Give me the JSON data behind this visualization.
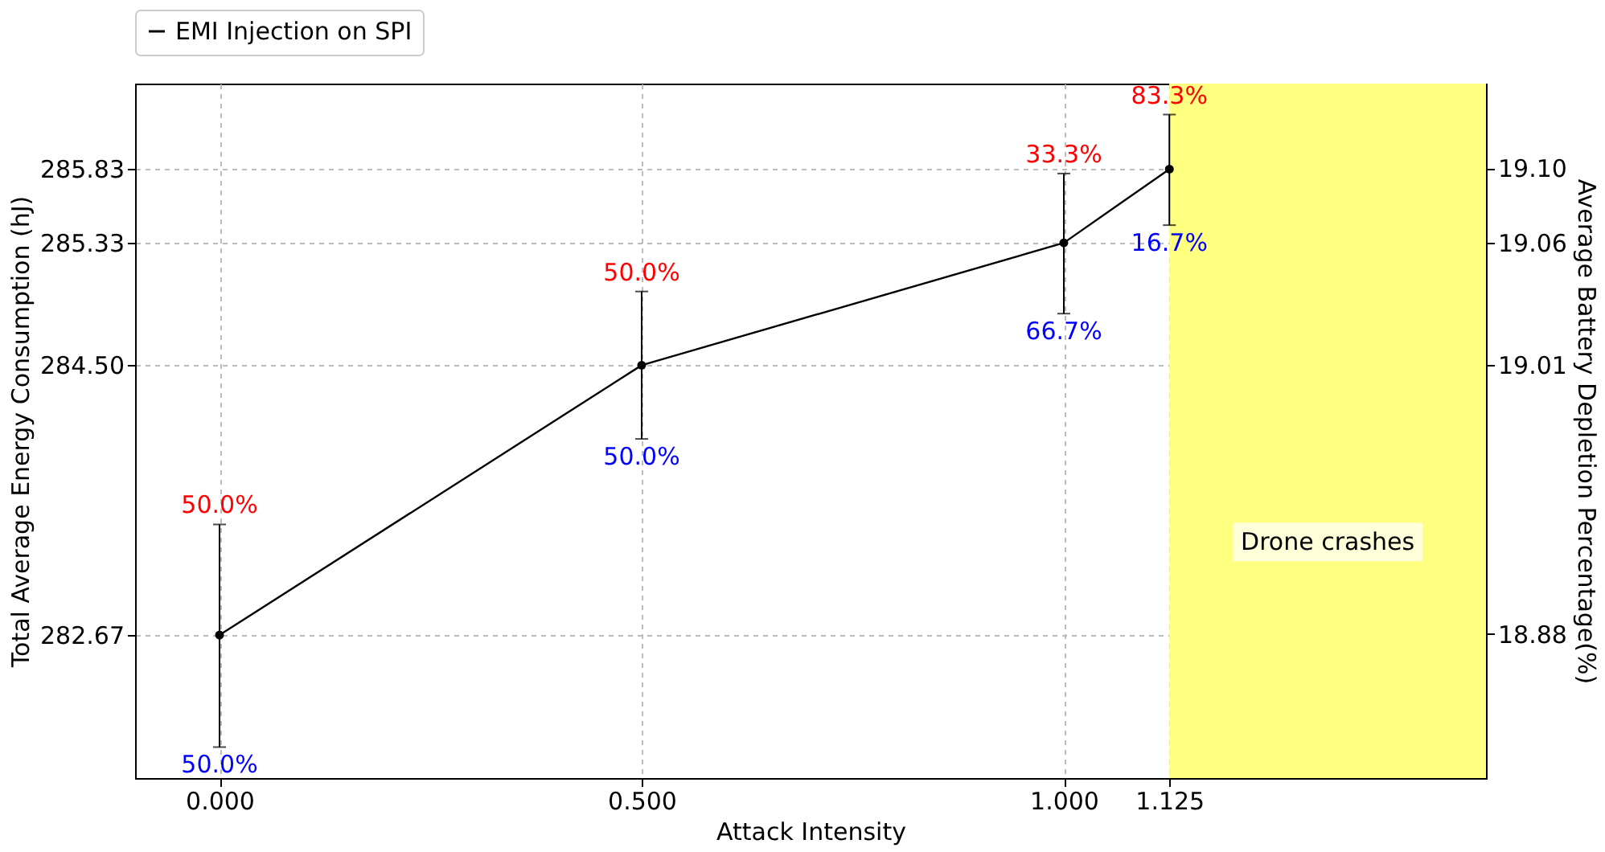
{
  "chart_data": {
    "type": "line",
    "xlabel": "Attack Intensity",
    "ylabel": "Total Average Energy Consumption (hJ)",
    "y2label": "Average Battery Depletion Percentage(%)",
    "x": [
      0,
      0.5,
      1.0,
      1.125
    ],
    "series": [
      {
        "name": "EMI Injection on SPI",
        "color": "#000000",
        "values": [
          282.67,
          284.5,
          285.33,
          285.83
        ],
        "errors": [
          [
            281.91,
            283.42
          ],
          [
            284.0,
            285.0
          ],
          [
            284.85,
            285.8
          ],
          [
            285.45,
            286.2
          ]
        ]
      }
    ],
    "xlim": [
      -0.1,
      1.5
    ],
    "xticks": [
      {
        "value": 0,
        "label": "0.000"
      },
      {
        "value": 0.5,
        "label": "0.500"
      },
      {
        "value": 1.0,
        "label": "1.000"
      },
      {
        "value": 1.125,
        "label": "1.125"
      }
    ],
    "ylim": [
      281.7,
      286.41
    ],
    "yticks": [
      {
        "value": 282.67,
        "label": "282.67"
      },
      {
        "value": 284.5,
        "label": "284.50"
      },
      {
        "value": 285.33,
        "label": "285.33"
      },
      {
        "value": 285.83,
        "label": "285.83"
      }
    ],
    "y2lim": [
      18.812,
      19.14
    ],
    "y2ticks": [
      {
        "value": 18.88,
        "label": "18.88"
      },
      {
        "value": 19.007,
        "label": "19.01"
      },
      {
        "value": 19.065,
        "label": "19.06"
      },
      {
        "value": 19.1,
        "label": "19.10"
      }
    ],
    "annotations": [
      {
        "text": "50.0%",
        "x": 0,
        "y": 283.42
      },
      {
        "text": "50.0%",
        "x": 0,
        "y": 281.91
      },
      {
        "text": "50.0%",
        "x": 0.5,
        "y": 285.0
      },
      {
        "text": "50.0%",
        "x": 0.5,
        "y": 284.0
      },
      {
        "text": "33.3%",
        "x": 1.0,
        "y": 285.8
      },
      {
        "text": "66.7%",
        "x": 1.0,
        "y": 284.85
      },
      {
        "text": "83.3%",
        "x": 1.125,
        "y": 286.2
      },
      {
        "text": "16.7%",
        "x": 1.125,
        "y": 285.45
      }
    ],
    "bands": [
      {
        "axis": "x",
        "from": 1.125,
        "to": 1.5,
        "label": "Drone crashes",
        "color": "#ffff80"
      }
    ],
    "grid": true,
    "legend": "top",
    "marker": "circle",
    "line_style": "solid"
  }
}
